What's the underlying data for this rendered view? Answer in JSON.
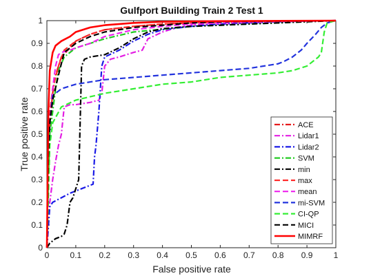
{
  "chart_data": {
    "type": "line",
    "title": "Gulfport Building Train 2 Test 1",
    "xlabel": "False positive rate",
    "ylabel": "True positive rate",
    "xlim": [
      0,
      1
    ],
    "ylim": [
      0,
      1
    ],
    "xticks": [
      "0",
      "0.1",
      "0.2",
      "0.3",
      "0.4",
      "0.5",
      "0.6",
      "0.7",
      "0.8",
      "0.9",
      "1"
    ],
    "yticks": [
      "0",
      "0.1",
      "0.2",
      "0.3",
      "0.4",
      "0.5",
      "0.6",
      "0.7",
      "0.8",
      "0.9",
      "1"
    ],
    "grid": false,
    "legend_position": "bottom-right",
    "series": [
      {
        "name": "ACE",
        "color": "#e41a1c",
        "dash": "dashdot",
        "x": [
          0,
          0.005,
          0.01,
          0.02,
          0.03,
          0.05,
          0.08,
          0.1,
          0.15,
          0.2,
          0.3,
          0.4,
          0.5,
          0.6,
          0.7,
          0.8,
          0.9,
          1
        ],
        "y": [
          0,
          0.4,
          0.55,
          0.68,
          0.76,
          0.84,
          0.88,
          0.91,
          0.94,
          0.96,
          0.975,
          0.985,
          0.99,
          0.993,
          0.996,
          0.998,
          0.999,
          1
        ]
      },
      {
        "name": "Lidar1",
        "color": "#e31ee3",
        "dash": "dashdot",
        "x": [
          0,
          0.01,
          0.02,
          0.03,
          0.04,
          0.05,
          0.06,
          0.08,
          0.1,
          0.15,
          0.18,
          0.19,
          0.2,
          0.22,
          0.25,
          0.3,
          0.33,
          0.35,
          0.4,
          0.45,
          0.5,
          0.6,
          0.7,
          0.8,
          0.9,
          1
        ],
        "y": [
          0,
          0.2,
          0.3,
          0.38,
          0.45,
          0.5,
          0.62,
          0.63,
          0.63,
          0.64,
          0.65,
          0.68,
          0.8,
          0.83,
          0.84,
          0.86,
          0.87,
          0.92,
          0.95,
          0.97,
          0.98,
          0.985,
          0.99,
          0.995,
          0.998,
          1
        ]
      },
      {
        "name": "Lidar2",
        "color": "#1a1ae6",
        "dash": "dashdot",
        "x": [
          0,
          0.01,
          0.02,
          0.05,
          0.08,
          0.1,
          0.12,
          0.14,
          0.16,
          0.165,
          0.17,
          0.18,
          0.19,
          0.2,
          0.25,
          0.3,
          0.35,
          0.4,
          0.5,
          0.6,
          0.7,
          0.8,
          0.9,
          1
        ],
        "y": [
          0,
          0.18,
          0.2,
          0.22,
          0.24,
          0.25,
          0.26,
          0.27,
          0.28,
          0.4,
          0.45,
          0.6,
          0.8,
          0.84,
          0.87,
          0.91,
          0.94,
          0.96,
          0.975,
          0.985,
          0.99,
          0.995,
          0.998,
          1
        ]
      },
      {
        "name": "SVM",
        "color": "#22cc22",
        "dash": "dashdot",
        "x": [
          0,
          0.005,
          0.01,
          0.02,
          0.03,
          0.04,
          0.06,
          0.1,
          0.2,
          0.3,
          0.5,
          0.8,
          0.9,
          1
        ],
        "y": [
          0,
          0.3,
          0.5,
          0.6,
          0.7,
          0.78,
          0.84,
          0.88,
          0.92,
          0.95,
          0.975,
          0.99,
          0.995,
          1
        ]
      },
      {
        "name": "min",
        "color": "#000000",
        "dash": "dashdot",
        "x": [
          0,
          0.01,
          0.02,
          0.03,
          0.05,
          0.06,
          0.07,
          0.08,
          0.09,
          0.1,
          0.11,
          0.12,
          0.13,
          0.15,
          0.2,
          0.25,
          0.3,
          0.35,
          0.4,
          0.5,
          0.6,
          0.7,
          0.8,
          0.9,
          1
        ],
        "y": [
          0,
          0.02,
          0.03,
          0.04,
          0.05,
          0.06,
          0.1,
          0.2,
          0.22,
          0.26,
          0.3,
          0.8,
          0.83,
          0.84,
          0.85,
          0.88,
          0.92,
          0.95,
          0.965,
          0.975,
          0.98,
          0.985,
          0.99,
          0.995,
          1
        ]
      },
      {
        "name": "max",
        "color": "#ff2a2a",
        "dash": "dash",
        "x": [
          0,
          0.005,
          0.01,
          0.02,
          0.04,
          0.06,
          0.1,
          0.15,
          0.2,
          0.3,
          0.4,
          0.5,
          0.6,
          0.8,
          1
        ],
        "y": [
          0,
          0.45,
          0.6,
          0.7,
          0.8,
          0.87,
          0.91,
          0.94,
          0.96,
          0.975,
          0.985,
          0.99,
          0.995,
          0.998,
          1
        ]
      },
      {
        "name": "mean",
        "color": "#ee22ee",
        "dash": "dash",
        "x": [
          0,
          0.01,
          0.02,
          0.03,
          0.04,
          0.05,
          0.08,
          0.1,
          0.15,
          0.2,
          0.3,
          0.4,
          0.5,
          0.6,
          0.8,
          1
        ],
        "y": [
          0,
          0.55,
          0.7,
          0.8,
          0.85,
          0.86,
          0.87,
          0.88,
          0.9,
          0.93,
          0.96,
          0.975,
          0.985,
          0.99,
          0.997,
          1
        ]
      },
      {
        "name": "mi-SVM",
        "color": "#2233dd",
        "dash": "dash",
        "x": [
          0,
          0.01,
          0.02,
          0.05,
          0.1,
          0.15,
          0.2,
          0.3,
          0.4,
          0.5,
          0.6,
          0.7,
          0.75,
          0.8,
          0.82,
          0.85,
          0.88,
          0.9,
          0.93,
          0.95,
          0.97,
          1
        ],
        "y": [
          0,
          0.55,
          0.67,
          0.7,
          0.72,
          0.73,
          0.74,
          0.75,
          0.76,
          0.77,
          0.78,
          0.79,
          0.8,
          0.81,
          0.82,
          0.84,
          0.87,
          0.9,
          0.94,
          0.97,
          0.99,
          1
        ]
      },
      {
        "name": "CI-QP",
        "color": "#33ee33",
        "dash": "dash",
        "x": [
          0,
          0.01,
          0.02,
          0.05,
          0.1,
          0.2,
          0.3,
          0.4,
          0.5,
          0.6,
          0.7,
          0.8,
          0.85,
          0.9,
          0.92,
          0.94,
          0.95,
          0.96,
          0.97,
          1
        ],
        "y": [
          0,
          0.45,
          0.55,
          0.62,
          0.65,
          0.68,
          0.7,
          0.72,
          0.73,
          0.75,
          0.76,
          0.77,
          0.78,
          0.8,
          0.82,
          0.84,
          0.86,
          0.95,
          0.99,
          1
        ]
      },
      {
        "name": "MICI",
        "color": "#000000",
        "dash": "dash",
        "x": [
          0,
          0.005,
          0.01,
          0.02,
          0.04,
          0.06,
          0.1,
          0.15,
          0.2,
          0.3,
          0.4,
          0.5,
          0.6,
          0.8,
          1
        ],
        "y": [
          0,
          0.4,
          0.55,
          0.65,
          0.76,
          0.86,
          0.9,
          0.93,
          0.95,
          0.97,
          0.98,
          0.99,
          0.995,
          0.998,
          1
        ]
      },
      {
        "name": "MIMRF",
        "color": "#ff0000",
        "dash": "solid",
        "x": [
          0,
          0.005,
          0.01,
          0.02,
          0.03,
          0.05,
          0.08,
          0.1,
          0.15,
          0.2,
          0.3,
          0.4,
          0.5,
          0.6,
          0.8,
          1
        ],
        "y": [
          0,
          0.6,
          0.78,
          0.86,
          0.89,
          0.91,
          0.93,
          0.95,
          0.97,
          0.98,
          0.99,
          0.995,
          0.997,
          0.998,
          0.999,
          1
        ]
      }
    ]
  }
}
